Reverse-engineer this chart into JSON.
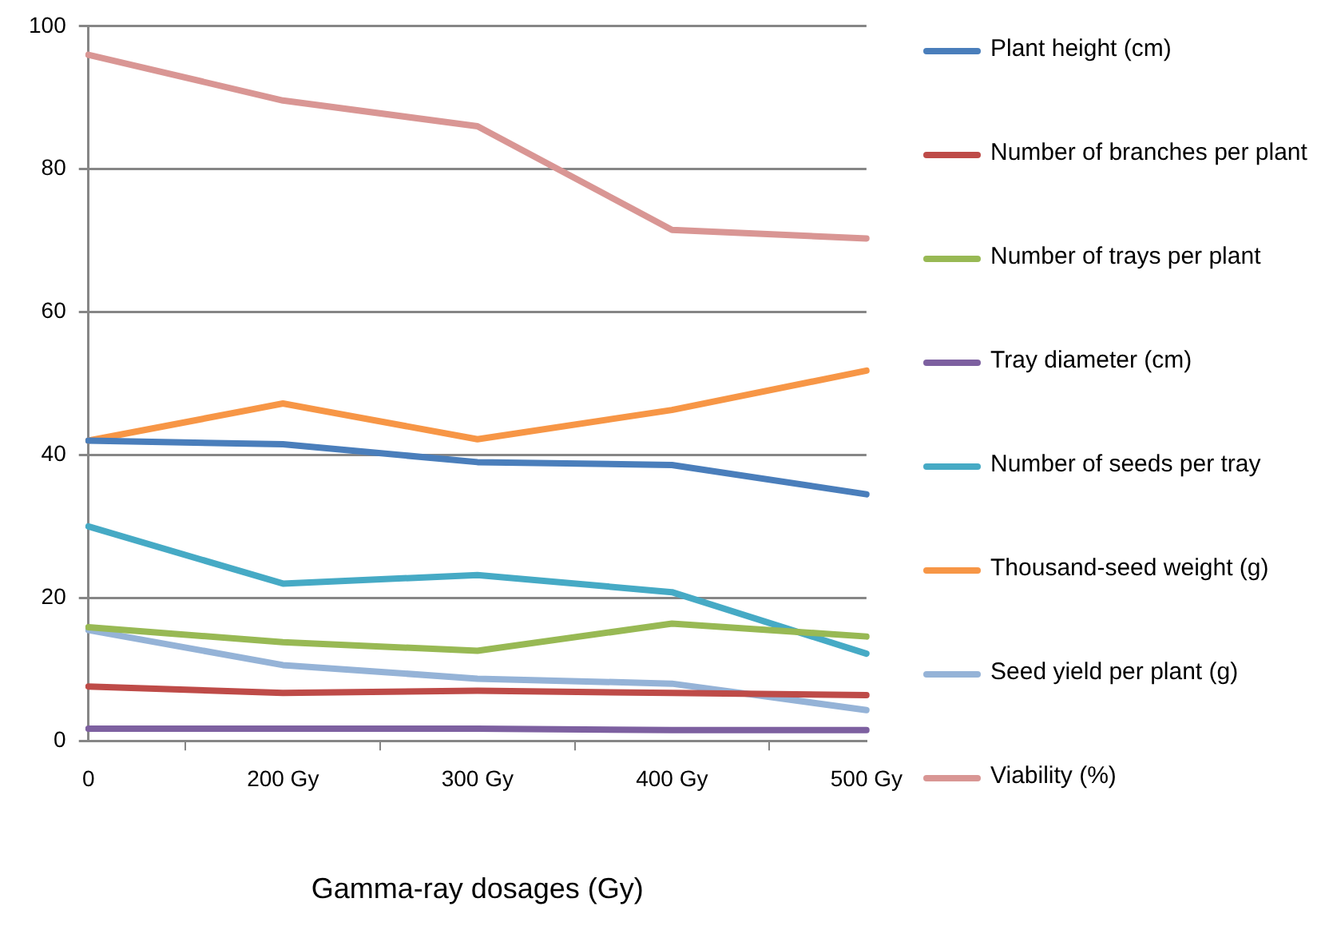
{
  "chart_data": {
    "type": "line",
    "xlabel": "Gamma-ray dosages (Gy)",
    "categories": [
      "0",
      "200 Gy",
      "300 Gy",
      "400 Gy",
      "500 Gy"
    ],
    "ylim": [
      0,
      100
    ],
    "yticks": [
      0,
      20,
      40,
      60,
      80,
      100
    ],
    "grid": "y",
    "legend": "right",
    "marker": "none",
    "line_style": "solid",
    "series": [
      {
        "name": "Plant height (cm)",
        "color": "#4a7ebb",
        "values": [
          42,
          41.5,
          39,
          38.6,
          34.5
        ]
      },
      {
        "name": "Number of branches per plant",
        "color": "#be4b48",
        "values": [
          7.6,
          6.7,
          7,
          6.7,
          6.4
        ]
      },
      {
        "name": "Number of trays per plant",
        "color": "#98b954",
        "values": [
          15.9,
          13.8,
          12.6,
          16.4,
          14.6
        ]
      },
      {
        "name": "Tray diameter (cm)",
        "color": "#7d60a0",
        "values": [
          1.7,
          1.7,
          1.7,
          1.5,
          1.5
        ]
      },
      {
        "name": "Number of seeds per tray",
        "color": "#46aac5",
        "values": [
          30,
          22,
          23.2,
          20.8,
          12.2
        ]
      },
      {
        "name": "Thousand-seed weight (g)",
        "color": "#f79646",
        "values": [
          42,
          47.2,
          42.2,
          46.3,
          51.8
        ]
      },
      {
        "name": "Seed yield per plant (g)",
        "color": "#95b3d7",
        "values": [
          15.5,
          10.6,
          8.7,
          8,
          4.3
        ]
      },
      {
        "name": "Viability (%)",
        "color": "#d99694",
        "values": [
          96,
          89.6,
          86,
          71.5,
          70.3
        ]
      }
    ]
  }
}
